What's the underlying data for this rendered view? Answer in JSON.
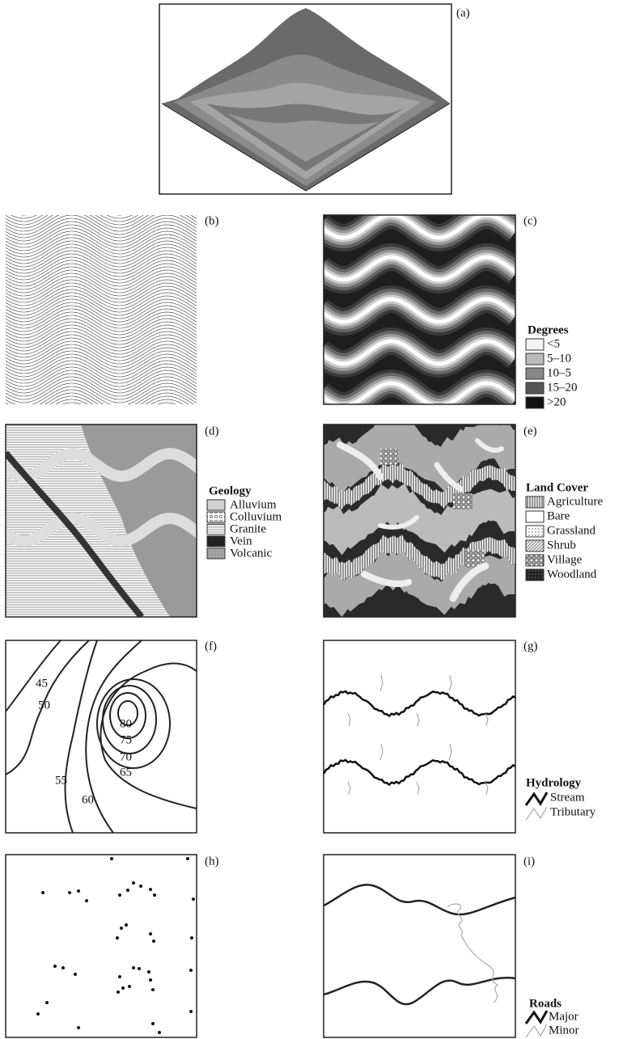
{
  "panels": [
    {
      "label": "(a)"
    },
    {
      "label": "(b)"
    },
    {
      "label": "(c)",
      "legend": {
        "title": "Degrees",
        "items": [
          "<5",
          "5–10",
          "10–5",
          "15–20",
          ">20"
        ]
      }
    },
    {
      "label": "(d)",
      "legend": {
        "title": "Geology",
        "items": [
          "Alluvium",
          "Colluvium",
          "Granite",
          "Vein",
          "Volcanic"
        ]
      }
    },
    {
      "label": "(e)",
      "legend": {
        "title": "Land Cover",
        "items": [
          "Agriculture",
          "Bare",
          "Grassland",
          "Shrub",
          "Village",
          "Woodland"
        ]
      }
    },
    {
      "label": "(f)",
      "contour_labels": [
        "45",
        "50",
        "55",
        "60",
        "65",
        "70",
        "75",
        "80"
      ]
    },
    {
      "label": "(g)",
      "legend": {
        "title": "Hydrology",
        "items": [
          "Stream",
          "Tributary"
        ]
      }
    },
    {
      "label": "(h)"
    },
    {
      "label": "(i)",
      "legend": {
        "title": "Roads",
        "items": [
          "Major",
          "Minor"
        ]
      }
    }
  ]
}
